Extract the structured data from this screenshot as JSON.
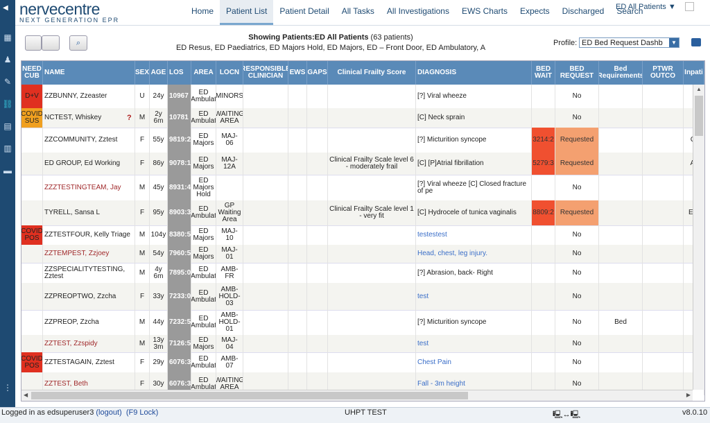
{
  "app": {
    "brand": "nervecentre",
    "subtitle": "NEXT GENERATION EPR"
  },
  "nav": {
    "items": [
      {
        "label": "Home"
      },
      {
        "label": "Patient List"
      },
      {
        "label": "Patient Detail"
      },
      {
        "label": "All Tasks"
      },
      {
        "label": "All Investigations"
      },
      {
        "label": "EWS Charts"
      },
      {
        "label": "Expects"
      },
      {
        "label": "Discharged"
      },
      {
        "label": "Search"
      }
    ],
    "active_index": 1,
    "context_label": "ED All Patients ▼"
  },
  "toolbar": {
    "showing_prefix": "Showing Patients:",
    "list_name": "ED All Patients",
    "patient_count": "(63 patients)",
    "areas": "ED Resus, ED Paediatrics, ED Majors Hold, ED Majors, ED – Front Door, ED Ambulatory, A",
    "profile_label": "Profile:",
    "profile_value": "ED Bed Request Dashb"
  },
  "columns": [
    "NEED CUB",
    "NAME",
    "SEX",
    "AGE",
    "LOS",
    "AREA",
    "LOCN",
    "RESPONSIBLE CLINICIAN",
    "EWS",
    "GAPS",
    "Clinical Frailty Score",
    "DIAGNOSIS",
    "BED WAIT",
    "BED REQUEST",
    "Bed Requirements",
    "PTWR OUTCO",
    "Inpati"
  ],
  "rows": [
    {
      "need": "D+V",
      "need_color": "red",
      "name": "ZZBUNNY, Zzeaster",
      "name_color": "normal",
      "sex": "U",
      "age": "24y",
      "los": "10967",
      "area": "ED Ambulat",
      "locn": "MINORS",
      "frailty": "",
      "diag": "[?] Viral wheeze",
      "diag_color": "normal",
      "bedwait": "",
      "request": "No",
      "bedreq": "",
      "inpat": "",
      "qmark": false
    },
    {
      "need": "COVID SUS",
      "need_color": "amber",
      "name": "NCTEST, Whiskey",
      "name_color": "normal",
      "sex": "M",
      "age": "2y 6m",
      "los": "10781",
      "area": "ED Ambulat",
      "locn": "WAITING AREA",
      "frailty": "",
      "diag": "[C] Neck sprain",
      "diag_color": "normal",
      "bedwait": "",
      "request": "No",
      "bedreq": "",
      "inpat": "",
      "qmark": true
    },
    {
      "need": "",
      "need_color": "",
      "name": "ZZCOMMUNITY, Zztest",
      "name_color": "normal",
      "sex": "F",
      "age": "55y",
      "los": "9819:2",
      "area": "ED Majors",
      "locn": "MAJ-06",
      "frailty": "",
      "diag": "[?] Micturition syncope",
      "diag_color": "normal",
      "bedwait": "3214:2",
      "request": "Requested",
      "bedreq": "",
      "inpat": "Cl",
      "qmark": false
    },
    {
      "need": "",
      "need_color": "",
      "name": "ED GROUP, Ed Working",
      "name_color": "normal",
      "sex": "F",
      "age": "86y",
      "los": "9078:1",
      "area": "ED Majors",
      "locn": "MAJ-12A",
      "frailty": "Clinical Frailty Scale level 6 - moderately frail",
      "diag": "[C] [P]Atrial fibrillation",
      "diag_color": "normal",
      "bedwait": "5279:3",
      "request": "Requested",
      "bedreq": "",
      "inpat": "Ar",
      "qmark": false
    },
    {
      "need": "",
      "need_color": "",
      "name": "ZZZTESTINGTEAM, Jay",
      "name_color": "red",
      "sex": "M",
      "age": "45y",
      "los": "8931:4",
      "area": "ED Majors Hold",
      "locn": "",
      "frailty": "",
      "diag": "[?] Viral wheeze [C] Closed fracture of pe",
      "diag_color": "normal",
      "bedwait": "",
      "request": "No",
      "bedreq": "",
      "inpat": "",
      "qmark": false
    },
    {
      "need": "",
      "need_color": "",
      "name": "TYRELL, Sansa L",
      "name_color": "normal",
      "sex": "F",
      "age": "95y",
      "los": "8903:3",
      "area": "ED Ambulat",
      "locn": "GP Waiting Area",
      "frailty": "Clinical Frailty Scale level 1 - very fit",
      "diag": "[C] Hydrocele of tunica vaginalis",
      "diag_color": "normal",
      "bedwait": "8809:2",
      "request": "Requested",
      "bedreq": "",
      "inpat": "Em",
      "qmark": false
    },
    {
      "need": "COVID POS",
      "need_color": "red",
      "name": "ZZTESTFOUR, Kelly Triage",
      "name_color": "normal",
      "sex": "M",
      "age": "104y",
      "los": "8380:5",
      "area": "ED Majors",
      "locn": "MAJ-10",
      "frailty": "",
      "diag": "testestest",
      "diag_color": "blue",
      "bedwait": "",
      "request": "No",
      "bedreq": "",
      "inpat": "",
      "qmark": false
    },
    {
      "need": "",
      "need_color": "",
      "name": "ZZTEMPEST, Zzjoey",
      "name_color": "red",
      "sex": "M",
      "age": "54y",
      "los": "7960:5",
      "area": "ED Majors",
      "locn": "MAJ-01",
      "frailty": "",
      "diag": "Head, chest, leg injury.",
      "diag_color": "blue",
      "bedwait": "",
      "request": "No",
      "bedreq": "",
      "inpat": "",
      "qmark": false
    },
    {
      "need": "",
      "need_color": "",
      "name": "ZZSPECIALITYTESTING, Zztest",
      "name_color": "normal",
      "sex": "M",
      "age": "4y 6m",
      "los": "7895:0",
      "area": "ED Ambulat",
      "locn": "AMB-FR",
      "frailty": "",
      "diag": "[?] Abrasion, back- Right",
      "diag_color": "normal",
      "bedwait": "",
      "request": "No",
      "bedreq": "",
      "inpat": "",
      "qmark": false
    },
    {
      "need": "",
      "need_color": "",
      "name": "ZZPREOPTWO, Zzcha",
      "name_color": "normal",
      "sex": "F",
      "age": "33y",
      "los": "7233:0",
      "area": "ED Ambulat",
      "locn": "AMB-HOLD-03",
      "frailty": "",
      "diag": "test",
      "diag_color": "blue",
      "bedwait": "",
      "request": "No",
      "bedreq": "",
      "inpat": "",
      "qmark": false
    },
    {
      "need": "",
      "need_color": "",
      "name": "ZZPREOP, Zzcha",
      "name_color": "normal",
      "sex": "M",
      "age": "44y",
      "los": "7232:5",
      "area": "ED Ambulat",
      "locn": "AMB-HOLD-01",
      "frailty": "",
      "diag": "[?] Micturition syncope",
      "diag_color": "normal",
      "bedwait": "",
      "request": "No",
      "bedreq": "Bed",
      "inpat": "",
      "qmark": false
    },
    {
      "need": "",
      "need_color": "",
      "name": "ZZTEST, Zzspidy",
      "name_color": "red",
      "sex": "M",
      "age": "13y 3m",
      "los": "7126:5",
      "area": "ED Majors",
      "locn": "MAJ-04",
      "frailty": "",
      "diag": "test",
      "diag_color": "blue",
      "bedwait": "",
      "request": "No",
      "bedreq": "",
      "inpat": "",
      "qmark": false
    },
    {
      "need": "COVID POS",
      "need_color": "red",
      "name": "ZZTESTAGAIN, Zztest",
      "name_color": "normal",
      "sex": "F",
      "age": "29y",
      "los": "6076:3",
      "area": "ED Ambulat",
      "locn": "AMB-07",
      "frailty": "",
      "diag": "Chest Pain",
      "diag_color": "blue",
      "bedwait": "",
      "request": "No",
      "bedreq": "",
      "inpat": "",
      "qmark": false
    },
    {
      "need": "",
      "need_color": "",
      "name": "ZZTEST, Beth",
      "name_color": "red",
      "sex": "F",
      "age": "30y",
      "los": "6076:3",
      "area": "ED Ambulat",
      "locn": "WAITING AREA",
      "frailty": "",
      "diag": "Fall - 3m height",
      "diag_color": "blue",
      "bedwait": "",
      "request": "No",
      "bedreq": "",
      "inpat": "",
      "qmark": false
    }
  ],
  "footer": {
    "logged_in": "Logged in as edsuperuser3",
    "logout": "(logout)",
    "lock": "(F9 Lock)",
    "env": "UHPT TEST",
    "version": "v8.0.10"
  },
  "colors": {
    "header_bg": "#5a8ab8",
    "need_red": "#e03020",
    "need_amber": "#f0a020",
    "bed_wait": "#f05030",
    "requested": "#f4a070",
    "sidebar": "#1e4a72"
  }
}
